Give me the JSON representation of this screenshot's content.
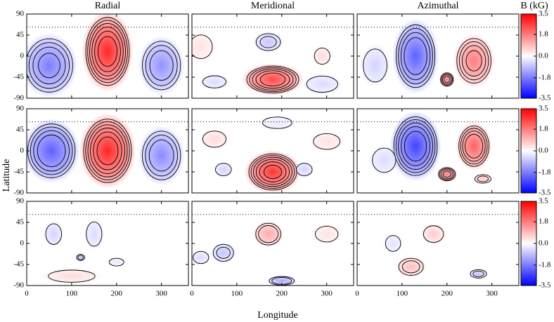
{
  "chart_data": {
    "type": "contour-grid",
    "x_axis": {
      "label": "Longitude",
      "lim": [
        0,
        360
      ],
      "ticks": [
        0,
        100,
        200,
        300
      ]
    },
    "y_axis": {
      "label": "Latitude",
      "lim": [
        -90,
        90
      ],
      "ticks": [
        90,
        45,
        0,
        -45,
        -90
      ]
    },
    "color_scale": {
      "label": "B (kG)",
      "lim": [
        -3.5,
        3.5
      ],
      "ticks": [
        3.5,
        1.8,
        {
          "value": 0,
          "label": "0.0"
        },
        -1.8,
        -3.5
      ],
      "colors": [
        "#0000ff",
        "#ffffff",
        "#ff0000"
      ]
    },
    "panels": [
      {
        "title": "Radial",
        "reference_lat": 62,
        "features": [
          {
            "x": 50,
            "y": -20,
            "w": 110,
            "h": 120,
            "value": -1.8
          },
          {
            "x": 180,
            "y": 10,
            "w": 100,
            "h": 150,
            "value": 3.0
          },
          {
            "x": 300,
            "y": -20,
            "w": 90,
            "h": 110,
            "value": -1.5
          }
        ]
      },
      {
        "title": "Meridional",
        "reference_lat": 62,
        "features": [
          {
            "x": 180,
            "y": -50,
            "w": 120,
            "h": 60,
            "value": 2.5
          },
          {
            "x": 170,
            "y": 30,
            "w": 60,
            "h": 40,
            "value": -0.8
          },
          {
            "x": 20,
            "y": 20,
            "w": 60,
            "h": 60,
            "value": 0.4
          },
          {
            "x": 290,
            "y": 0,
            "w": 40,
            "h": 40,
            "value": 0.5
          },
          {
            "x": 50,
            "y": -55,
            "w": 60,
            "h": 30,
            "value": -0.5
          },
          {
            "x": 290,
            "y": -60,
            "w": 80,
            "h": 40,
            "value": -0.5
          }
        ]
      },
      {
        "title": "Azimuthal",
        "reference_lat": 62,
        "features": [
          {
            "x": 130,
            "y": 0,
            "w": 90,
            "h": 140,
            "value": -2.2
          },
          {
            "x": 260,
            "y": -10,
            "w": 80,
            "h": 100,
            "value": 1.8
          },
          {
            "x": 200,
            "y": -50,
            "w": 30,
            "h": 30,
            "value": 1.8
          },
          {
            "x": 40,
            "y": -20,
            "w": 60,
            "h": 80,
            "value": -0.6
          }
        ]
      },
      {
        "reference_lat": 62,
        "features": [
          {
            "x": 55,
            "y": 0,
            "w": 110,
            "h": 120,
            "value": -2.2
          },
          {
            "x": 180,
            "y": 0,
            "w": 110,
            "h": 140,
            "value": 3.0
          },
          {
            "x": 300,
            "y": -10,
            "w": 90,
            "h": 110,
            "value": -1.6
          }
        ]
      },
      {
        "reference_lat": 62,
        "features": [
          {
            "x": 180,
            "y": -45,
            "w": 110,
            "h": 80,
            "value": 2.8
          },
          {
            "x": 50,
            "y": 25,
            "w": 60,
            "h": 40,
            "value": 0.5
          },
          {
            "x": 70,
            "y": -40,
            "w": 40,
            "h": 30,
            "value": -0.6
          },
          {
            "x": 250,
            "y": -40,
            "w": 40,
            "h": 30,
            "value": -0.6
          },
          {
            "x": 300,
            "y": 20,
            "w": 70,
            "h": 40,
            "value": 0.4
          },
          {
            "x": 190,
            "y": 60,
            "w": 80,
            "h": 30,
            "value": -0.3
          }
        ]
      },
      {
        "reference_lat": 62,
        "features": [
          {
            "x": 130,
            "y": 10,
            "w": 100,
            "h": 130,
            "value": -2.6
          },
          {
            "x": 260,
            "y": 10,
            "w": 70,
            "h": 90,
            "value": 2.2
          },
          {
            "x": 200,
            "y": -50,
            "w": 40,
            "h": 30,
            "value": 1.8
          },
          {
            "x": 280,
            "y": -60,
            "w": 40,
            "h": 20,
            "value": 0.8
          },
          {
            "x": 60,
            "y": -20,
            "w": 60,
            "h": 60,
            "value": -0.5
          }
        ]
      },
      {
        "reference_lat": 62,
        "features": [
          {
            "x": 60,
            "y": 20,
            "w": 40,
            "h": 50,
            "value": -0.6
          },
          {
            "x": 150,
            "y": 20,
            "w": 40,
            "h": 60,
            "value": -0.5
          },
          {
            "x": 120,
            "y": -30,
            "w": 20,
            "h": 15,
            "value": -0.8
          },
          {
            "x": 100,
            "y": -70,
            "w": 120,
            "h": 30,
            "value": 0.5
          },
          {
            "x": 200,
            "y": -40,
            "w": 40,
            "h": 20,
            "value": -0.3
          }
        ]
      },
      {
        "reference_lat": 62,
        "features": [
          {
            "x": 170,
            "y": 20,
            "w": 60,
            "h": 50,
            "value": 1.2
          },
          {
            "x": 70,
            "y": -20,
            "w": 50,
            "h": 40,
            "value": -0.8
          },
          {
            "x": 200,
            "y": -80,
            "w": 60,
            "h": 20,
            "value": -1.2
          },
          {
            "x": 300,
            "y": 20,
            "w": 60,
            "h": 40,
            "value": 0.4
          },
          {
            "x": 20,
            "y": -30,
            "w": 40,
            "h": 30,
            "value": -0.5
          }
        ]
      },
      {
        "reference_lat": 62,
        "features": [
          {
            "x": 170,
            "y": 20,
            "w": 50,
            "h": 40,
            "value": 0.7
          },
          {
            "x": 120,
            "y": -50,
            "w": 60,
            "h": 40,
            "value": 0.9
          },
          {
            "x": 270,
            "y": -65,
            "w": 40,
            "h": 20,
            "value": -0.8
          },
          {
            "x": 80,
            "y": 0,
            "w": 40,
            "h": 40,
            "value": -0.4
          }
        ]
      }
    ]
  }
}
